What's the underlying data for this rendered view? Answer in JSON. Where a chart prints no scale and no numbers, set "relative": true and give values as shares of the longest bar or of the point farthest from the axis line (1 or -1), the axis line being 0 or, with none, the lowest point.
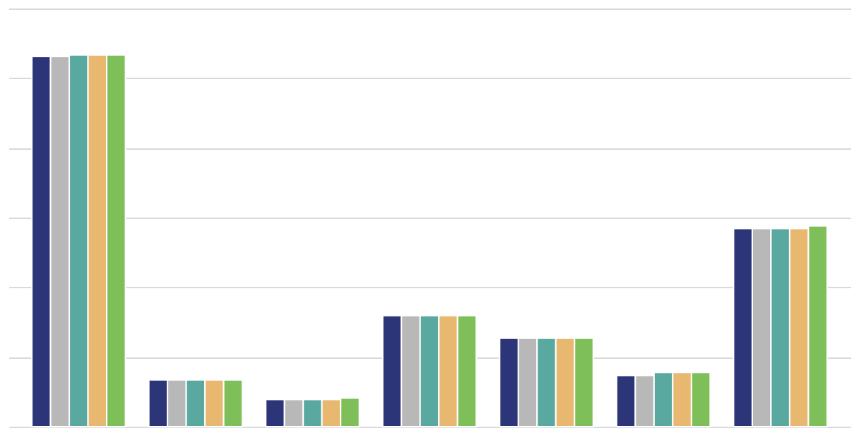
{
  "chart_data": {
    "type": "bar",
    "relative": true,
    "grid": "y",
    "legend": false,
    "categories": [
      null,
      null,
      null,
      null,
      null,
      null,
      null
    ],
    "series": [
      {
        "color": "#2b3578",
        "values": [
          0.996,
          0.126,
          0.073,
          0.299,
          0.238,
          0.138,
          0.533
        ]
      },
      {
        "color": "#b8b8b8",
        "values": [
          0.996,
          0.126,
          0.073,
          0.299,
          0.238,
          0.138,
          0.533
        ]
      },
      {
        "color": "#5aa9a0",
        "values": [
          1,
          0.126,
          0.073,
          0.299,
          0.238,
          0.146,
          0.533
        ]
      },
      {
        "color": "#e8b870",
        "values": [
          1,
          0.126,
          0.073,
          0.299,
          0.238,
          0.146,
          0.533
        ]
      },
      {
        "color": "#7fbf5a",
        "values": [
          1,
          0.126,
          0.077,
          0.299,
          0.238,
          0.146,
          0.54
        ]
      }
    ]
  }
}
